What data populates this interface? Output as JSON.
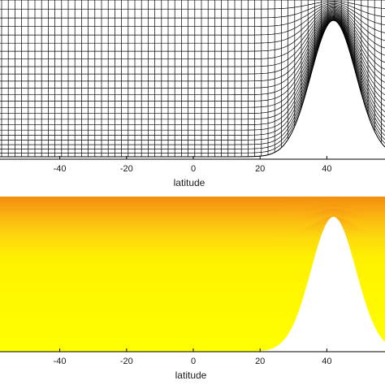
{
  "chart_data": [
    {
      "type": "line",
      "title": "",
      "xlabel": "latitude",
      "ylabel": "",
      "x_ticks": [
        -40,
        -20,
        0,
        20,
        40
      ],
      "xlim": [
        -58,
        60
      ],
      "grid": "terrain-following mesh",
      "topography": {
        "center_latitude": 42,
        "width_deg": 9.5,
        "peak_fraction": 0.87
      },
      "line_color": "#000000"
    },
    {
      "type": "heatmap",
      "title": "",
      "xlabel": "latitude",
      "ylabel": "",
      "x_ticks": [
        -40,
        -20,
        0,
        20,
        40
      ],
      "xlim": [
        -58,
        60
      ],
      "colormap": [
        "#d51a0a",
        "#ec4a10",
        "#f68014",
        "#fbaf12",
        "#fdd60e",
        "#fff200"
      ],
      "topography": {
        "center_latitude": 42,
        "width_deg": 9.5,
        "peak_fraction": 0.87
      }
    }
  ]
}
